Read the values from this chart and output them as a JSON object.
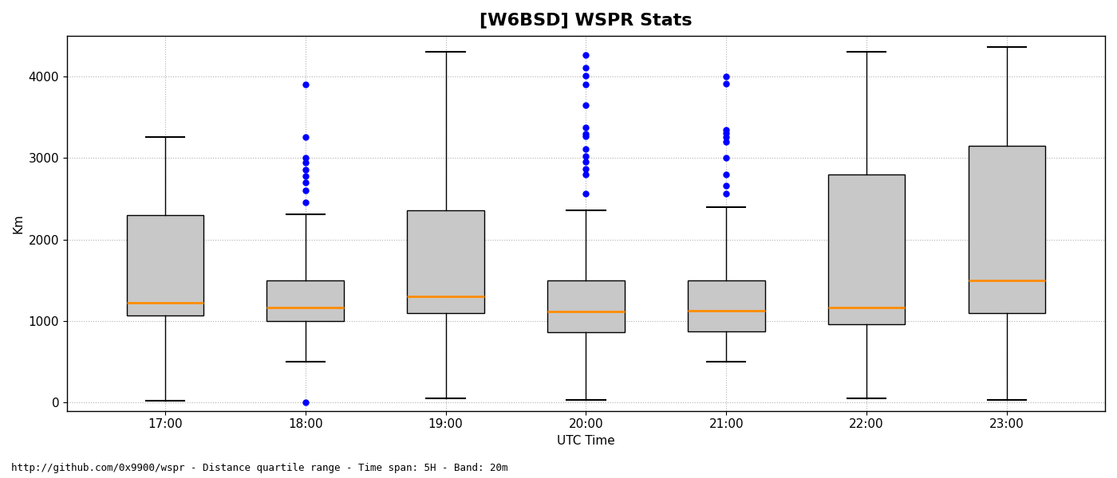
{
  "title": "[W6BSD] WSPR Stats",
  "xlabel": "UTC Time",
  "ylabel": "Km",
  "footer": "http://github.com/0x9900/wspr - Distance quartile range - Time span: 5H - Band: 20m",
  "categories": [
    "17:00",
    "18:00",
    "19:00",
    "20:00",
    "21:00",
    "22:00",
    "23:00"
  ],
  "box_stats": [
    {
      "whislo": 20,
      "q1": 1070,
      "med": 1230,
      "q3": 2300,
      "whishi": 3260,
      "fliers": []
    },
    {
      "whislo": 500,
      "q1": 1000,
      "med": 1170,
      "q3": 1500,
      "whishi": 2310,
      "fliers": [
        0,
        2460,
        2600,
        2700,
        2780,
        2860,
        2950,
        3000,
        3260,
        3900
      ]
    },
    {
      "whislo": 50,
      "q1": 1100,
      "med": 1300,
      "q3": 2360,
      "whishi": 4300,
      "fliers": []
    },
    {
      "whislo": 30,
      "q1": 860,
      "med": 1120,
      "q3": 1500,
      "whishi": 2360,
      "fliers": [
        2560,
        2800,
        2870,
        2960,
        3020,
        3110,
        3270,
        3300,
        3380,
        3650,
        3900,
        4010,
        4110,
        4260
      ]
    },
    {
      "whislo": 500,
      "q1": 870,
      "med": 1130,
      "q3": 1500,
      "whishi": 2400,
      "fliers": [
        2560,
        2660,
        2800,
        3000,
        3200,
        3260,
        3310,
        3350,
        3910,
        4000
      ]
    },
    {
      "whislo": 50,
      "q1": 960,
      "med": 1170,
      "q3": 2800,
      "whishi": 4300,
      "fliers": []
    },
    {
      "whislo": 30,
      "q1": 1100,
      "med": 1500,
      "q3": 3150,
      "whishi": 4360,
      "fliers": []
    }
  ],
  "box_facecolor": "#c8c8c8",
  "box_edgecolor": "#000000",
  "median_color": "#ff8c00",
  "whisker_color": "#000000",
  "flier_color": "#0000ff",
  "grid_color": "#b0b0b0",
  "background_color": "#ffffff",
  "title_fontsize": 16,
  "label_fontsize": 11,
  "tick_fontsize": 11,
  "footer_fontsize": 9,
  "ylim": [
    -100,
    4500
  ],
  "yticks": [
    0,
    1000,
    2000,
    3000,
    4000
  ],
  "box_width": 0.55
}
